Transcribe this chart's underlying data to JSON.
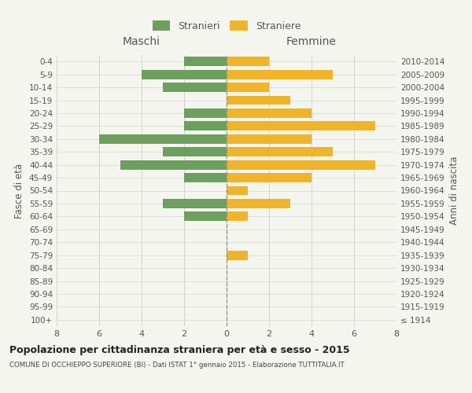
{
  "age_groups": [
    "100+",
    "95-99",
    "90-94",
    "85-89",
    "80-84",
    "75-79",
    "70-74",
    "65-69",
    "60-64",
    "55-59",
    "50-54",
    "45-49",
    "40-44",
    "35-39",
    "30-34",
    "25-29",
    "20-24",
    "15-19",
    "10-14",
    "5-9",
    "0-4"
  ],
  "birth_years": [
    "≤ 1914",
    "1915-1919",
    "1920-1924",
    "1925-1929",
    "1930-1934",
    "1935-1939",
    "1940-1944",
    "1945-1949",
    "1950-1954",
    "1955-1959",
    "1960-1964",
    "1965-1969",
    "1970-1974",
    "1975-1979",
    "1980-1984",
    "1985-1989",
    "1990-1994",
    "1995-1999",
    "2000-2004",
    "2005-2009",
    "2010-2014"
  ],
  "maschi": [
    0,
    0,
    0,
    0,
    0,
    0,
    0,
    0,
    2,
    3,
    0,
    2,
    5,
    3,
    6,
    2,
    2,
    0,
    3,
    4,
    2
  ],
  "femmine": [
    0,
    0,
    0,
    0,
    0,
    1,
    0,
    0,
    1,
    3,
    1,
    4,
    7,
    5,
    4,
    7,
    4,
    3,
    2,
    5,
    2
  ],
  "color_maschi": "#6d9f5e",
  "color_femmine": "#f0b429",
  "title": "Popolazione per cittadinanza straniera per età e sesso - 2015",
  "subtitle": "COMUNE DI OCCHIEPPO SUPERIORE (BI) - Dati ISTAT 1° gennaio 2015 - Elaborazione TUTTITALIA.IT",
  "ylabel_left": "Fasce di età",
  "ylabel_right": "Anni di nascita",
  "xlabel_left": "Maschi",
  "xlabel_right": "Femmine",
  "legend_maschi": "Stranieri",
  "legend_femmine": "Straniere",
  "xlim": 8,
  "background_color": "#f5f5f0",
  "grid_color": "#cccccc",
  "text_color": "#555555"
}
